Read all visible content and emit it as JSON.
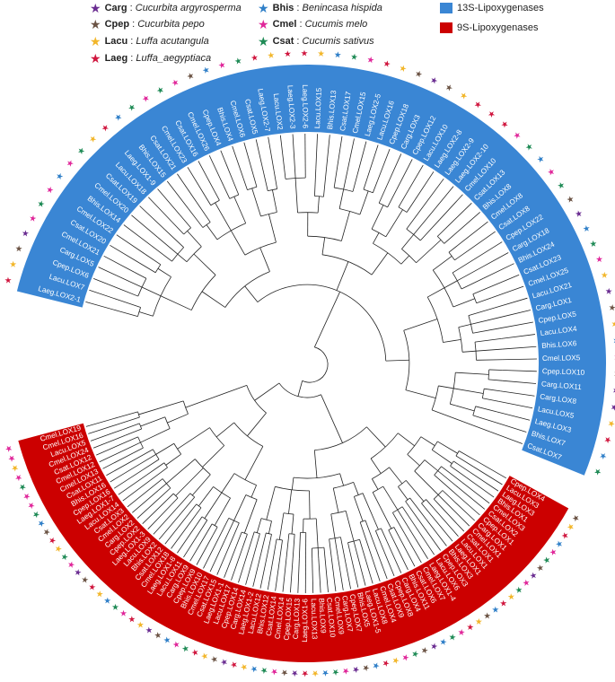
{
  "legend": {
    "species": [
      {
        "code": "Carg",
        "colon": ":",
        "species": "Cucurbita argyrosperma",
        "color": "#6a2c91",
        "icon": "star-icon"
      },
      {
        "code": "Cpep",
        "colon": ":",
        "species": "Cucurbita pepo",
        "color": "#6b5344",
        "icon": "star-icon"
      },
      {
        "code": "Lacu",
        "colon": ":",
        "species": "Luffa acutangula",
        "color": "#f2b62a",
        "icon": "star-icon"
      },
      {
        "code": "Laeg",
        "colon": ":",
        "species": "Luffa_aegyptiaca",
        "color": "#d0163e",
        "icon": "star-icon"
      },
      {
        "code": "Bhis",
        "colon": ":",
        "species": "Benincasa hispida",
        "color": "#2f7fc8",
        "icon": "star-icon"
      },
      {
        "code": "Cmel",
        "colon": ":",
        "species": "Cucumis melo",
        "color": "#e0279a",
        "icon": "star-icon"
      },
      {
        "code": "Csat",
        "colon": ":",
        "species": "Cucumis sativus",
        "color": "#1e8a55",
        "icon": "star-icon"
      }
    ],
    "groups": [
      {
        "label": "13S-Lipoxygenases",
        "color": "#3a86d4"
      },
      {
        "label": "9S-Lipoxygenases",
        "color": "#cc0000"
      }
    ]
  },
  "tree": {
    "group13": [
      "Laeg.LOX2-1",
      "Lacu.LOX7",
      "Cpep.LOX6",
      "Carg.LOX5",
      "Cmel.LOX21",
      "Csat.LOX20",
      "Cmel.LOX22",
      "Bhis.LOX14",
      "Cmel.LOX20",
      "Csat.LOX19",
      "Lacu.LOX18",
      "Laeg.LOX1-9",
      "Bhis.LOX15",
      "Csat.LOX21",
      "Cmel.LOX23",
      "Csat.LOX16",
      "Cmel.LOX26",
      "Cpep.LOX4",
      "Bhis.LOX4",
      "Cmel.LOX6",
      "Csat.LOX5",
      "Laeg.LOX2-7",
      "Lacu.LOX2",
      "Laeg.LOX2-3",
      "Laeg.LOX2-6",
      "Lacu.LOX15",
      "Bhis.LOX13",
      "Csat.LOX17",
      "Cmel.LOX15",
      "Laeg.LOX2-5",
      "Lacu.LOX16",
      "Cpep.LOX18",
      "Carg.LOX3",
      "Cpep.LOX12",
      "Lacu.LOX10",
      "Laeg.LOX2-8",
      "Laeg.LOX2-9",
      "Laeg.LOX2-10",
      "Cmel.LOX10",
      "Csat.LOX13",
      "Bhis.LOX8",
      "Cmel.LOX8",
      "Csat.LOX8",
      "Cpep.LOX22",
      "Carg.LOX18",
      "Bhis.LOX24",
      "Csat.LOX23",
      "Cmel.LOX25",
      "Lacu.LOX21",
      "Carg.LOX1",
      "Cpep.LOX5",
      "Lacu.LOX4",
      "Bhis.LOX6",
      "Cmel.LOX5",
      "Cpep.LOX10",
      "Carg.LOX11",
      "Carg.LOX8",
      "Lacu.LOX5",
      "Laeg.LOX3",
      "Bhis.LOX7",
      "Csat.LOX7"
    ],
    "group9": [
      "Cpep.LOX4",
      "Lacu.LOX3",
      "Laeg.LOX3",
      "Bhis.LOX1",
      "Cmel.LOX3",
      "Csat.LOX2",
      "Cpep.LOX1",
      "Carg.LOX1",
      "Cmel.LOX1",
      "Csat.LOX1",
      "Lacu.LOX1",
      "Laeg.LOX1",
      "Bhis.LOX3",
      "Cpep.LOX3",
      "Lacu.LOX6",
      "Laeg.LOX1-4",
      "Cmel.LOX7",
      "Csat.LOX6",
      "Bhis.LOX11",
      "Carg.LOX4",
      "Cpep.LOX8",
      "Csat.LOX9",
      "Cmel.LOX4",
      "Lacu.LOX8",
      "Laeg.LOX1-5",
      "Bhis.LOX5",
      "Cpep.LOX7",
      "Carg.LOX7",
      "Cmel.LOX9",
      "Csat.LOX10",
      "Bhis.LOX9",
      "Lacu.LOX13",
      "Laeg.LOX1-6",
      "Carg.LOX13",
      "Cpep.LOX15",
      "Cmel.LOX14",
      "Csat.LOX14",
      "Bhis.LOX12",
      "Lacu.LOX12",
      "Laeg.LOX1-2",
      "Carg.LOX14",
      "Cpep.LOX14",
      "Lacu.LOX17",
      "Laeg.LOX1-1",
      "Csat.LOX15",
      "Cmel.LOX17",
      "Bhis.LOX10",
      "Cpep.LOX9",
      "Carg.LOX9",
      "Lacu.LOX11",
      "Laeg.LOX1-8",
      "Cmel.LOX18",
      "Csat.LOX12",
      "Bhis.LOX2",
      "Lacu.LOX9",
      "Laeg.LOX1-3",
      "Cpep.LOX2",
      "Carg.LOX2",
      "Cmel.LOX2",
      "Csat.LOX3",
      "Lacu.LOX14",
      "Laeg.LOX1-7",
      "Cpep.LOX16",
      "Bhis.LOX16",
      "Csat.LOX11",
      "Cmel.LOX13",
      "Cmel.LOX12",
      "Csat.LOX12",
      "Cmel.LOX24",
      "Lacu.LOX5",
      "Cmel.LOX16",
      "Cmel.LOX19"
    ]
  }
}
